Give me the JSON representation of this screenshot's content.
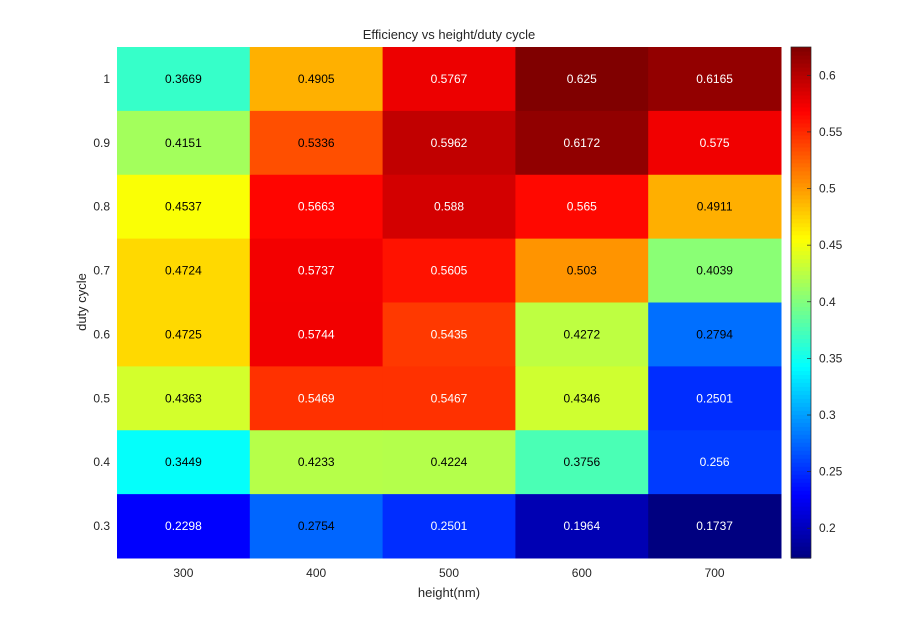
{
  "chart_data": {
    "type": "heatmap",
    "title": "Efficiency vs height/duty cycle",
    "xlabel": "height(nm)",
    "ylabel": "duty cycle",
    "x": [
      "300",
      "400",
      "500",
      "600",
      "700"
    ],
    "y": [
      "1",
      "0.9",
      "0.8",
      "0.7",
      "0.6",
      "0.5",
      "0.4",
      "0.3"
    ],
    "values": [
      [
        0.3669,
        0.4905,
        0.5767,
        0.625,
        0.6165
      ],
      [
        0.4151,
        0.5336,
        0.5962,
        0.6172,
        0.575
      ],
      [
        0.4537,
        0.5663,
        0.588,
        0.565,
        0.4911
      ],
      [
        0.4724,
        0.5737,
        0.5605,
        0.503,
        0.4039
      ],
      [
        0.4725,
        0.5744,
        0.5435,
        0.4272,
        0.2794
      ],
      [
        0.4363,
        0.5469,
        0.5467,
        0.4346,
        0.2501
      ],
      [
        0.3449,
        0.4233,
        0.4224,
        0.3756,
        0.256
      ],
      [
        0.2298,
        0.2754,
        0.2501,
        0.1964,
        0.1737
      ]
    ],
    "value_labels": [
      [
        "0.3669",
        "0.4905",
        "0.5767",
        "0.625",
        "0.6165"
      ],
      [
        "0.4151",
        "0.5336",
        "0.5962",
        "0.6172",
        "0.575"
      ],
      [
        "0.4537",
        "0.5663",
        "0.588",
        "0.565",
        "0.4911"
      ],
      [
        "0.4724",
        "0.5737",
        "0.5605",
        "0.503",
        "0.4039"
      ],
      [
        "0.4725",
        "0.5744",
        "0.5435",
        "0.4272",
        "0.2794"
      ],
      [
        "0.4363",
        "0.5469",
        "0.5467",
        "0.4346",
        "0.2501"
      ],
      [
        "0.3449",
        "0.4233",
        "0.4224",
        "0.3756",
        "0.256"
      ],
      [
        "0.2298",
        "0.2754",
        "0.2501",
        "0.1964",
        "0.1737"
      ]
    ],
    "colorbar": {
      "colormap": "jet",
      "clim": [
        0.1737,
        0.625
      ],
      "ticks": [
        "0.2",
        "0.25",
        "0.3",
        "0.35",
        "0.4",
        "0.45",
        "0.5",
        "0.55",
        "0.6"
      ]
    },
    "grid": false
  }
}
